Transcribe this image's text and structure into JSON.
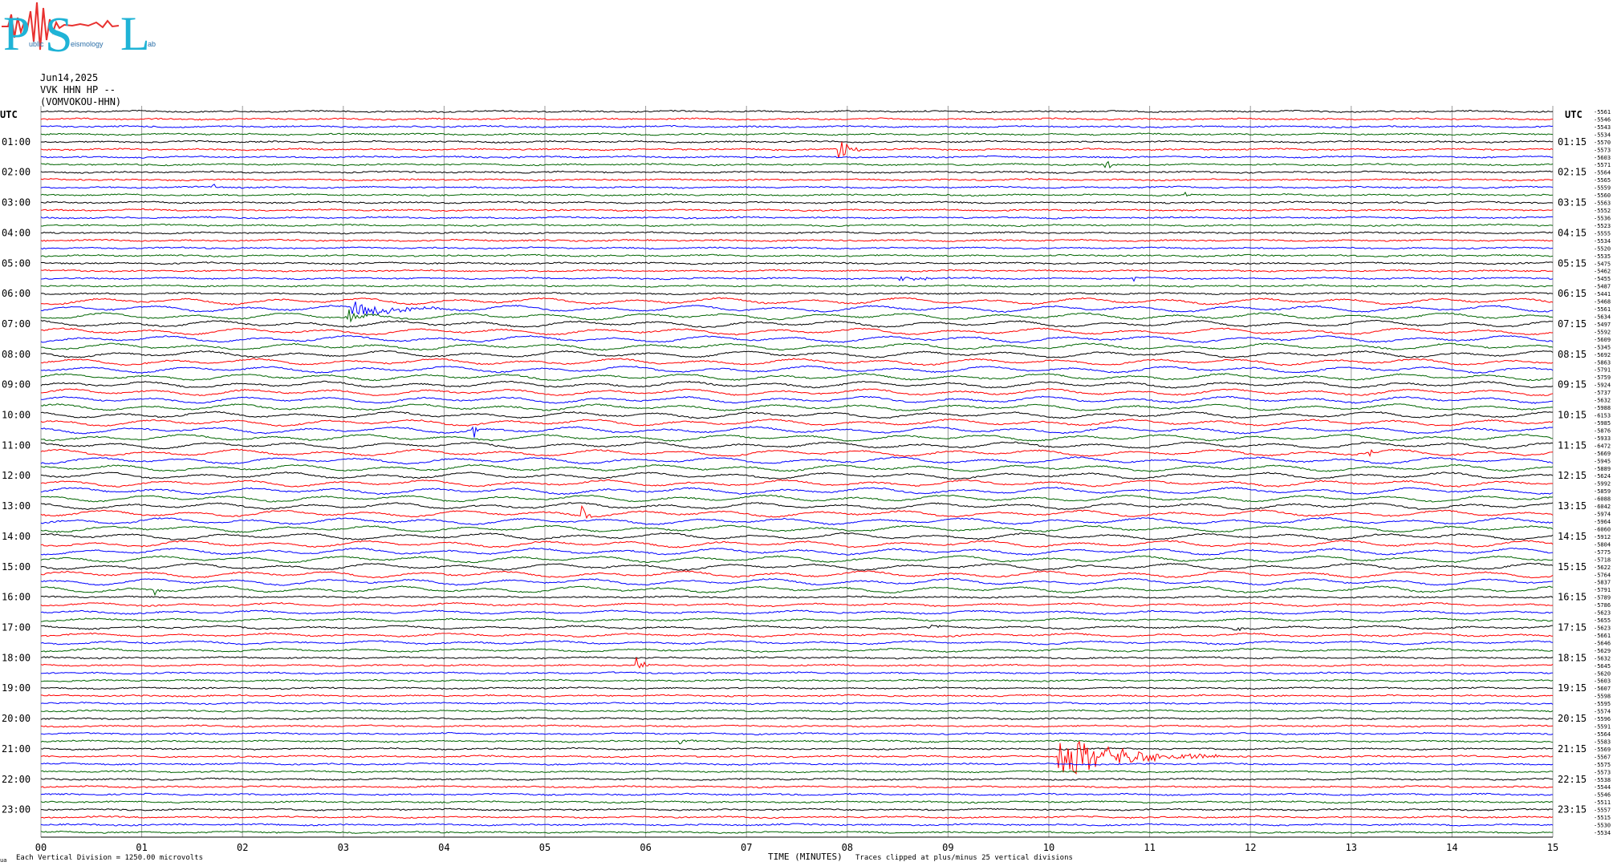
{
  "logo": {
    "big_letters": [
      "P",
      "S",
      "L"
    ],
    "small_letters": [
      "ublic",
      "eismology",
      "ab"
    ],
    "colors": {
      "letters": "#1fb3d6",
      "squiggle": "#e8312f",
      "small": "#2b6fa8"
    }
  },
  "header": {
    "date": "Jun14,2025",
    "station": "VVK HHN HP --",
    "station_name": "(VOMVOKOU-HHN)"
  },
  "chart_data": {
    "type": "line",
    "title": "Jun14,2025",
    "xlabel": "TIME (MINUTES)",
    "x_ticks": [
      "00",
      "01",
      "02",
      "03",
      "04",
      "05",
      "06",
      "07",
      "08",
      "09",
      "10",
      "11",
      "12",
      "13",
      "14",
      "15"
    ],
    "xlim": [
      0,
      15
    ],
    "left_axis_label": "UTC",
    "right_axis_label": "UTC",
    "left_hour_labels": [
      "01:00",
      "02:00",
      "03:00",
      "04:00",
      "05:00",
      "06:00",
      "07:00",
      "08:00",
      "09:00",
      "10:00",
      "11:00",
      "12:00",
      "13:00",
      "14:00",
      "15:00",
      "16:00",
      "17:00",
      "18:00",
      "19:00",
      "20:00",
      "21:00",
      "22:00",
      "23:00"
    ],
    "right_hour_labels": [
      "01:15",
      "02:15",
      "03:15",
      "04:15",
      "05:15",
      "06:15",
      "07:15",
      "08:15",
      "09:15",
      "10:15",
      "11:15",
      "12:15",
      "13:15",
      "14:15",
      "15:15",
      "16:15",
      "17:15",
      "18:15",
      "19:15",
      "20:15",
      "21:15",
      "22:15",
      "23:15"
    ],
    "trace_colors": [
      "#000000",
      "#ff0000",
      "#0000ff",
      "#006400"
    ],
    "trace_count": 96,
    "minutes_per_trace": 15,
    "grid": true,
    "trace_offsets": [
      "-5561",
      "-5546",
      "-5543",
      "-5534",
      "-5570",
      "-5573",
      "-5603",
      "-5571",
      "-5564",
      "-5565",
      "-5559",
      "-5560",
      "-5563",
      "-5552",
      "-5536",
      "-5523",
      "-5555",
      "-5534",
      "-5520",
      "-5535",
      "-5475",
      "-5462",
      "-5455",
      "-5487",
      "-5441",
      "-5468",
      "-5561",
      "-5634",
      "-5497",
      "-5592",
      "-5609",
      "-5345",
      "-5692",
      "-5863",
      "-5791",
      "-5759",
      "-5924",
      "-5737",
      "-5632",
      "-5988",
      "-6153",
      "-5985",
      "-5876",
      "-5933",
      "-6472",
      "-5669",
      "-5945",
      "-5889",
      "-5624",
      "-5992",
      "-5859",
      "-6088",
      "-6042",
      "-5974",
      "-5964",
      "-6060",
      "-5912",
      "-5804",
      "-5775",
      "-5718",
      "-5622",
      "-5764",
      "-5837",
      "-5791",
      "-5789",
      "-5786",
      "-5623",
      "-5655",
      "-5623",
      "-5661",
      "-5646",
      "-5629",
      "-5632",
      "-5645",
      "-5620",
      "-5603",
      "-5607",
      "-5598",
      "-5595",
      "-5574",
      "-5596",
      "-5591",
      "-5564",
      "-5583",
      "-5569",
      "-5567",
      "-5575",
      "-5573",
      "-5538",
      "-5544",
      "-5546",
      "-5511",
      "-5557",
      "-5515",
      "-5530",
      "-5534"
    ],
    "events": [
      {
        "trace": 5,
        "minute": 7.93,
        "amp": 14,
        "dur": 0.25
      },
      {
        "trace": 7,
        "minute": 10.57,
        "amp": 6,
        "dur": 0.25
      },
      {
        "trace": 10,
        "minute": 1.72,
        "amp": 4,
        "dur": 0.05
      },
      {
        "trace": 11,
        "minute": 11.36,
        "amp": 5,
        "dur": 0.1
      },
      {
        "trace": 22,
        "minute": 8.5,
        "amp": 3,
        "dur": 0.8
      },
      {
        "trace": 22,
        "minute": 10.85,
        "amp": 6,
        "dur": 0.05
      },
      {
        "trace": 26,
        "minute": 3.1,
        "amp": 9,
        "dur": 1.2
      },
      {
        "trace": 27,
        "minute": 3.05,
        "amp": 9,
        "dur": 0.4
      },
      {
        "trace": 42,
        "minute": 4.3,
        "amp": 9,
        "dur": 0.05
      },
      {
        "trace": 45,
        "minute": 13.2,
        "amp": 4,
        "dur": 0.15
      },
      {
        "trace": 53,
        "minute": 5.38,
        "amp": 14,
        "dur": 0.1
      },
      {
        "trace": 63,
        "minute": 1.15,
        "amp": 6,
        "dur": 0.1
      },
      {
        "trace": 68,
        "minute": 8.8,
        "amp": 6,
        "dur": 0.2
      },
      {
        "trace": 68,
        "minute": 11.85,
        "amp": 5,
        "dur": 0.2
      },
      {
        "trace": 73,
        "minute": 5.92,
        "amp": 9,
        "dur": 0.15
      },
      {
        "trace": 83,
        "minute": 6.35,
        "amp": 4,
        "dur": 0.3
      },
      {
        "trace": 85,
        "minute": 10.1,
        "amp": 30,
        "dur": 1.6
      }
    ]
  },
  "footer": {
    "vertical_division": "Each Vertical Division = 1250.00 microvolts",
    "clip_note": "Traces clipped at plus/minus 25 vertical divisions",
    "corner_mark": "ua"
  }
}
